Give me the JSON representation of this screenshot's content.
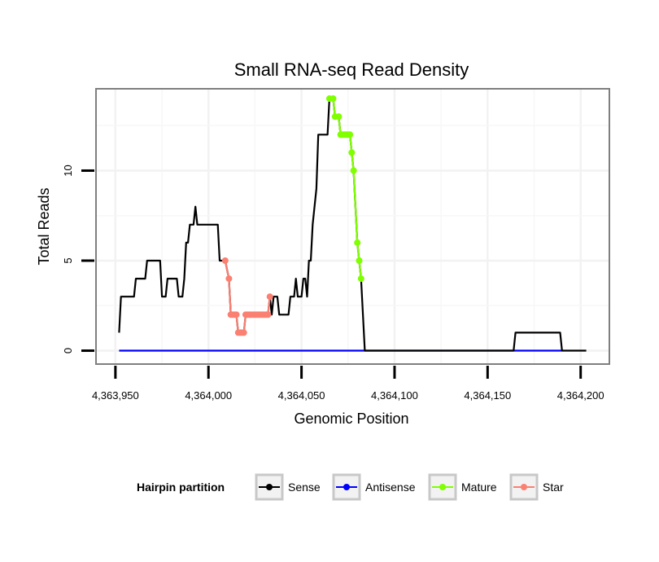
{
  "chart_data": {
    "type": "line",
    "title": "Small RNA-seq Read Density",
    "xlabel": "Genomic Position",
    "ylabel": "Total Reads",
    "xlim": [
      4363940,
      4364215
    ],
    "ylim": [
      -0.7,
      14.5
    ],
    "x_ticks": [
      4363950,
      4364000,
      4364050,
      4364100,
      4364150,
      4364200
    ],
    "x_tick_labels": [
      "4,363,950",
      "4,364,000",
      "4,364,050",
      "4,364,100",
      "4,364,150",
      "4,364,200"
    ],
    "y_ticks": [
      0,
      5,
      10
    ],
    "y_tick_labels": [
      "0",
      "5",
      "10"
    ],
    "grid": true,
    "legend": {
      "title": "Hairpin partition",
      "position": "bottom",
      "entries": [
        {
          "name": "Sense",
          "color": "#000000"
        },
        {
          "name": "Antisense",
          "color": "#0000ff"
        },
        {
          "name": "Mature",
          "color": "#7fff00"
        },
        {
          "name": "Star",
          "color": "#fa8072"
        }
      ]
    },
    "series": [
      {
        "name": "Sense",
        "color": "#000000",
        "markers": false,
        "points": [
          [
            4363952,
            1
          ],
          [
            4363953,
            3
          ],
          [
            4363960,
            3
          ],
          [
            4363961,
            4
          ],
          [
            4363966,
            4
          ],
          [
            4363967,
            5
          ],
          [
            4363974,
            5
          ],
          [
            4363975,
            3
          ],
          [
            4363977,
            3
          ],
          [
            4363978,
            4
          ],
          [
            4363983,
            4
          ],
          [
            4363984,
            3
          ],
          [
            4363986,
            3
          ],
          [
            4363987,
            4
          ],
          [
            4363988,
            6
          ],
          [
            4363989,
            6
          ],
          [
            4363990,
            7
          ],
          [
            4363992,
            7
          ],
          [
            4363993,
            8
          ],
          [
            4363994,
            7
          ],
          [
            4364005,
            7
          ],
          [
            4364006,
            5
          ],
          [
            4364009,
            5
          ],
          [
            4364011,
            4
          ],
          [
            4364012,
            2
          ],
          [
            4364015,
            2
          ],
          [
            4364016,
            1
          ],
          [
            4364019,
            1
          ],
          [
            4364020,
            2
          ],
          [
            4364032,
            2
          ],
          [
            4364033,
            3
          ],
          [
            4364034,
            2
          ],
          [
            4364035,
            3
          ],
          [
            4364037,
            3
          ],
          [
            4364038,
            2
          ],
          [
            4364043,
            2
          ],
          [
            4364044,
            3
          ],
          [
            4364046,
            3
          ],
          [
            4364047,
            4
          ],
          [
            4364048,
            3
          ],
          [
            4364050,
            3
          ],
          [
            4364051,
            4
          ],
          [
            4364052,
            4
          ],
          [
            4364053,
            3
          ],
          [
            4364054,
            5
          ],
          [
            4364055,
            5
          ],
          [
            4364056,
            7
          ],
          [
            4364058,
            9
          ],
          [
            4364059,
            12
          ],
          [
            4364064,
            12
          ],
          [
            4364065,
            14
          ],
          [
            4364067,
            14
          ],
          [
            4364068,
            13
          ],
          [
            4364070,
            13
          ],
          [
            4364071,
            12
          ],
          [
            4364076,
            12
          ],
          [
            4364077,
            11
          ],
          [
            4364078,
            10
          ],
          [
            4364080,
            6
          ],
          [
            4364081,
            5
          ],
          [
            4364082,
            4
          ],
          [
            4364083,
            2
          ],
          [
            4364084,
            0
          ],
          [
            4364164,
            0
          ],
          [
            4364165,
            1
          ],
          [
            4364189,
            1
          ],
          [
            4364190,
            0
          ],
          [
            4364203,
            0
          ]
        ]
      },
      {
        "name": "Antisense",
        "color": "#0000ff",
        "markers": false,
        "points": [
          [
            4363952,
            0
          ],
          [
            4364190,
            0
          ]
        ]
      },
      {
        "name": "Mature",
        "color": "#7fff00",
        "markers": true,
        "points": [
          [
            4364065,
            14
          ],
          [
            4364067,
            14
          ],
          [
            4364068,
            13
          ],
          [
            4364070,
            13
          ],
          [
            4364071,
            12
          ],
          [
            4364072,
            12
          ],
          [
            4364073,
            12
          ],
          [
            4364074,
            12
          ],
          [
            4364075,
            12
          ],
          [
            4364076,
            12
          ],
          [
            4364077,
            11
          ],
          [
            4364078,
            10
          ],
          [
            4364080,
            6
          ],
          [
            4364081,
            5
          ],
          [
            4364082,
            4
          ]
        ]
      },
      {
        "name": "Star",
        "color": "#fa8072",
        "markers": true,
        "points": [
          [
            4364009,
            5
          ],
          [
            4364011,
            4
          ],
          [
            4364012,
            2
          ],
          [
            4364013,
            2
          ],
          [
            4364014,
            2
          ],
          [
            4364015,
            2
          ],
          [
            4364016,
            1
          ],
          [
            4364017,
            1
          ],
          [
            4364018,
            1
          ],
          [
            4364019,
            1
          ],
          [
            4364020,
            2
          ],
          [
            4364021,
            2
          ],
          [
            4364022,
            2
          ],
          [
            4364023,
            2
          ],
          [
            4364024,
            2
          ],
          [
            4364025,
            2
          ],
          [
            4364026,
            2
          ],
          [
            4364027,
            2
          ],
          [
            4364028,
            2
          ],
          [
            4364029,
            2
          ],
          [
            4364030,
            2
          ],
          [
            4364031,
            2
          ],
          [
            4364032,
            2
          ],
          [
            4364033,
            3
          ]
        ]
      }
    ]
  }
}
